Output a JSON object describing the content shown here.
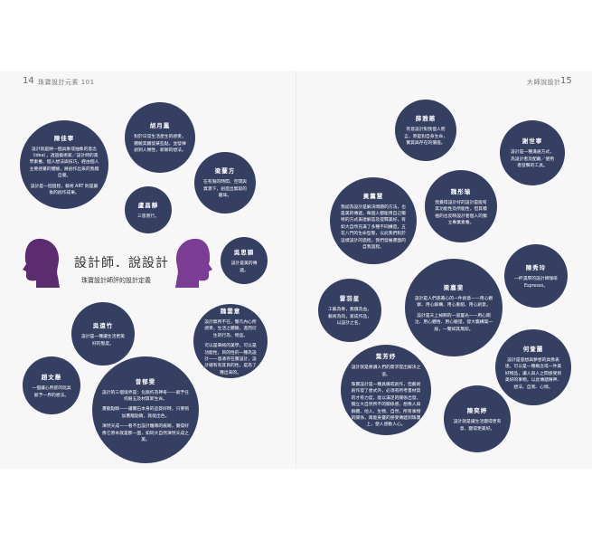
{
  "header": {
    "left_page_num": "14",
    "left_title": "珠寶設計元素 101",
    "right_title": "大師說設計",
    "right_page_num": "15"
  },
  "center": {
    "heading": "設計師．說設計",
    "subheading": "珠寶設計師評的設計定義"
  },
  "designers": [
    {
      "name": "陳佳寧",
      "quotes": [
        "設計就是將一個具象或抽象的意念（idea），透過藝術家／設計師的美學素養、個人想法與技巧，經由個人主要感覺的體驗，將創作出來的我獨自覺。",
        "設計是一個過程，藝術 ART 則是最後的創作成果。"
      ]
    },
    {
      "name": "胡月鳳",
      "quotes": [
        "對於日常生活產生的感受，體驗其觸發某些點，並發揮創到人類性，新穎的想法。"
      ]
    },
    {
      "name": "梁蘭方",
      "quotes": [
        "在有限的時間、空間與資源下，創造出無窮的趣味。"
      ]
    },
    {
      "name": "盧昌靜",
      "quotes": [
        "三思而行。"
      ]
    },
    {
      "name": "吳思穎",
      "quotes": [
        "設計是美的傳遞。"
      ]
    },
    {
      "name": "吳遠竹",
      "quotes": [
        "設計是一種讓生活更美好的態度。"
      ]
    },
    {
      "name": "魏雲意",
      "quotes": [
        "設計無所不在，譬凡內心所感受，生活之體驗，進而衍生的行為、物品。",
        "可以是單純的美學，可以是功能性，目的性的一種為設計——意適存在實設計，設計總有有其目的性，是為了種出來的。"
      ]
    },
    {
      "name": "趙文懸",
      "quotes": [
        "一個讓心所欲的玩具賦予一界的想法。"
      ]
    },
    {
      "name": "曾郁雯",
      "quotes": [
        "設計的三個境界是：化腐朽為神奇——賦予任何廢五及材質新生命。",
        "畫龍點睛——讓實石本身的品質好時，只要稍加畫龍點睛，就能出色。",
        "渾然天成——看不出設計雕琢的痕跡，覺得好像它原本就是那一面，如同大自然渾然天成之美。"
      ]
    },
    {
      "name": "薛雅慈",
      "quotes": [
        "有意設計對我個人而言，原是對自身生命，實質與存在的價值。"
      ]
    },
    {
      "name": "謝世寧",
      "quotes": [
        "設計是一種溝通方式，為設計者及配戴／使用者發聲的工具。"
      ]
    },
    {
      "name": "黃薰慧",
      "quotes": [
        "我認為設計是解決問題的方法，也是美的傳遞，每個人都能用自己獨特的方式表達解答及提釋美好，有如大自然充滿了多種不同構造，五花八門的生命型態，以此我們對於這樣設計的過程，我們發展畫面的自我過程。"
      ]
    },
    {
      "name": "魏彤瑜",
      "quotes": [
        "我覺得設計好的設計是能有其功能性及所能性，但其積極的也反映設計者個人的獨立專業素養。"
      ]
    },
    {
      "name": "雷羽星",
      "quotes": [
        "工藝為骨，無價為血，藝術為肉，家成作品，以設計之名。"
      ]
    },
    {
      "name": "梁嘉斐",
      "quotes": [
        "設計是人們憑著心的一件創意——用心觀察、用心解構、用心重組、用心創意。",
        "設計是天上掉飾的一道靈光——用心關注、用心體悟、用心驗證，發大膽構築一般，一覽如其無窮。"
      ]
    },
    {
      "name": "陳秀玲",
      "quotes": [
        "一杯濃厚的設計師咖啡 Espresso。"
      ]
    },
    {
      "name": "葉芳妤",
      "quotes": [
        "設計就是將讀人們的需求提出解決之道。",
        "珠寶設計是一種具備或創作，但藝術創作發了想式外，必須有所考量材質的才有力度，能以滿足的關係出發，獨立大自然所不的關係感，想像人與群體、他人、生物、自然，所有事物的關係，再能身靈的感受傳遞到珠寶上，使人感動人心。"
      ]
    },
    {
      "name": "何萱蘭",
      "quotes": [
        "設計是思想與夢想的具像表達，可以是一種概念或一件美好物品，讓人與人之間感受到美好的事物，以此傳遞精神、想法、自我、心情。"
      ]
    },
    {
      "name": "陳奕婷",
      "quotes": [
        "設計就是讓生活變得更有意、變得更美好。"
      ]
    }
  ]
}
